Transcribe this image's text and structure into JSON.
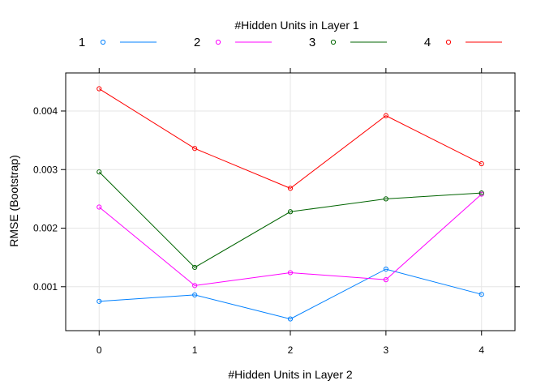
{
  "chart_data": {
    "type": "line",
    "legend_title": "#Hidden Units in Layer 1",
    "legend_position": "top",
    "xlabel": "#Hidden Units in Layer 2",
    "ylabel": "RMSE (Bootstrap)",
    "x": [
      0,
      1,
      2,
      3,
      4
    ],
    "x_ticks": [
      "0",
      "1",
      "2",
      "3",
      "4"
    ],
    "y_ticks": [
      0.001,
      0.002,
      0.003,
      0.004
    ],
    "y_tick_labels": [
      "0.001",
      "0.002",
      "0.003",
      "0.004"
    ],
    "xlim": [
      -0.35,
      4.35
    ],
    "ylim": [
      0.00025,
      0.00465
    ],
    "grid": true,
    "series": [
      {
        "name": "1",
        "color": "#0080ff",
        "values": [
          0.00075,
          0.00086,
          0.00045,
          0.0013,
          0.00087
        ]
      },
      {
        "name": "2",
        "color": "#ff00ff",
        "values": [
          0.00236,
          0.00102,
          0.00124,
          0.00112,
          0.00258
        ]
      },
      {
        "name": "3",
        "color": "#006400",
        "values": [
          0.00296,
          0.00133,
          0.00228,
          0.0025,
          0.0026
        ]
      },
      {
        "name": "4",
        "color": "#ff0000",
        "values": [
          0.00438,
          0.00336,
          0.00268,
          0.00392,
          0.0031
        ]
      }
    ]
  }
}
